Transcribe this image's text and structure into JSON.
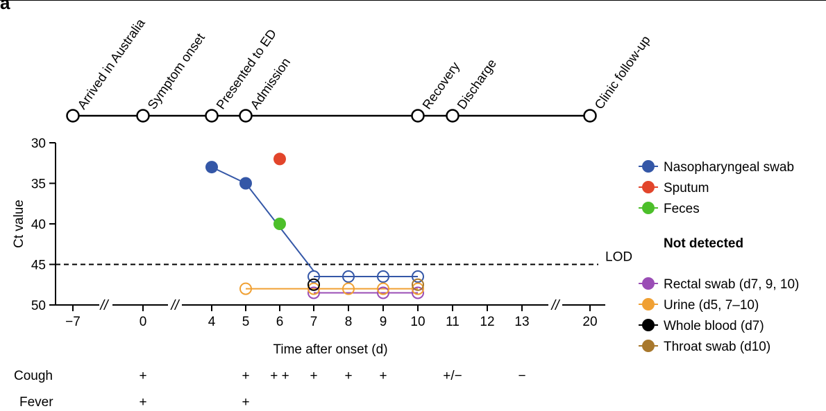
{
  "panel_label": "a",
  "chart_data": {
    "type": "scatter",
    "title": "",
    "xlabel": "Time after onset (d)",
    "ylabel": "Ct value",
    "ylim": [
      30,
      50
    ],
    "y_inverted": true,
    "yticks": [
      30,
      35,
      40,
      45,
      50
    ],
    "xticks": [
      "−7",
      "0",
      "4",
      "5",
      "6",
      "7",
      "8",
      "9",
      "10",
      "11",
      "12",
      "13",
      "20"
    ],
    "axis_breaks": [
      [
        "−7",
        "0"
      ],
      [
        "0",
        "4"
      ],
      [
        "13",
        "20"
      ]
    ],
    "lod": {
      "label": "LOD",
      "value": 45
    },
    "timeline_events": [
      {
        "x": "−7",
        "label": "Arrived in Australia"
      },
      {
        "x": "0",
        "label": "Symptom onset"
      },
      {
        "x": "4",
        "label": "Presented to ED"
      },
      {
        "x": "5",
        "label": "Admission"
      },
      {
        "x": "10",
        "label": "Recovery"
      },
      {
        "x": "11",
        "label": "Discharge"
      },
      {
        "x": "20",
        "label": "Clinic follow-up"
      }
    ],
    "series": [
      {
        "name": "Nasopharyngeal swab",
        "color": "#3457a7",
        "detected": true,
        "connected": true,
        "points": [
          {
            "x": "4",
            "y": 33
          },
          {
            "x": "5",
            "y": 35
          }
        ]
      },
      {
        "name": "Sputum",
        "color": "#e2452b",
        "detected": true,
        "connected": false,
        "points": [
          {
            "x": "6",
            "y": 32
          }
        ]
      },
      {
        "name": "Feces",
        "color": "#4cbf2a",
        "detected": true,
        "connected": false,
        "points": [
          {
            "x": "6",
            "y": 40
          }
        ]
      }
    ],
    "not_detected_heading": "Not detected",
    "not_detected_series": [
      {
        "name": "Nasopharyngeal swab",
        "color": "#3457a7",
        "in_legend": false,
        "days": [
          "7",
          "8",
          "9",
          "10"
        ],
        "y": 46.5
      },
      {
        "name": "Rectal swab (d7, 9, 10)",
        "color": "#9a4db5",
        "in_legend": true,
        "days": [
          "7",
          "9",
          "10"
        ],
        "y": 48.5
      },
      {
        "name": "Urine (d5, 7–10)",
        "color": "#f0a033",
        "in_legend": true,
        "days": [
          "5",
          "7",
          "8",
          "9",
          "10"
        ],
        "y": 48
      },
      {
        "name": "Whole blood (d7)",
        "color": "#000000",
        "in_legend": true,
        "days": [
          "7"
        ],
        "y": 47.5
      },
      {
        "name": "Throat swab (d10)",
        "color": "#a8782c",
        "in_legend": true,
        "days": [
          "10"
        ],
        "y": 47.5
      }
    ],
    "symptoms": [
      {
        "label": "Cough",
        "marks": [
          {
            "x": "0",
            "text": "+"
          },
          {
            "x": "5",
            "text": "+"
          },
          {
            "x": "6",
            "text": "+ +"
          },
          {
            "x": "7",
            "text": "+"
          },
          {
            "x": "8",
            "text": "+"
          },
          {
            "x": "9",
            "text": "+"
          },
          {
            "x": "11",
            "text": "+/−"
          },
          {
            "x": "13",
            "text": "−"
          }
        ]
      },
      {
        "label": "Fever",
        "marks": [
          {
            "x": "0",
            "text": "+"
          },
          {
            "x": "5",
            "text": "+"
          }
        ]
      }
    ]
  }
}
